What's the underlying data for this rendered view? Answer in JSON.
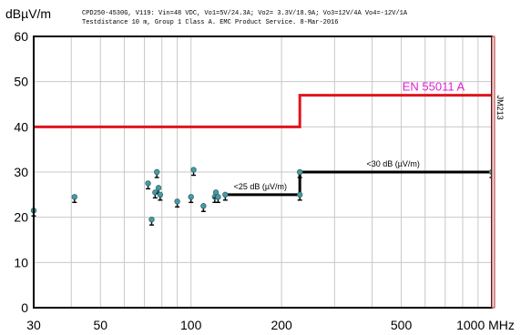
{
  "chart_data": {
    "type": "scatter",
    "ylabel": "dBµV/m",
    "header_line1": "CPD250-4530G, V119: Vin=48 VDC, Vo1=5V/24.3A; Vo2= 3.3V/18.9A; Vo3=12V/4A Vo4=-12V/1A",
    "header_line2": "Testdistance 10 m, Group 1 Class A. EMC Product Service. 8-Mar-2016",
    "x_scale": "log",
    "xlim": [
      30,
      1000
    ],
    "ylim": [
      0,
      60
    ],
    "x_ticks": [
      30,
      50,
      100,
      200,
      500,
      1000
    ],
    "x_tick_labels": [
      "30",
      "50",
      "100",
      "200",
      "500",
      "1000 MHz"
    ],
    "y_ticks": [
      0,
      10,
      20,
      30,
      40,
      50,
      60
    ],
    "y_tick_labels": [
      "0",
      "10",
      "20",
      "30",
      "40",
      "50",
      "60"
    ],
    "grid": true,
    "side_label": "JM213",
    "limit_line": {
      "label": "EN 55011 A",
      "color": "#e0141e",
      "label_color": "#e020d0",
      "points": [
        [
          30,
          40
        ],
        [
          230,
          40
        ],
        [
          230,
          47
        ],
        [
          1000,
          47
        ]
      ]
    },
    "margin_line": {
      "color": "#000000",
      "points": [
        [
          130,
          25
        ],
        [
          230,
          25
        ],
        [
          230,
          30
        ],
        [
          1000,
          30
        ]
      ],
      "labels": [
        {
          "text": "<25 dB (µV/m)",
          "x": 170,
          "y": 25
        },
        {
          "text": "<30 dB (µV/m)",
          "x": 470,
          "y": 30
        }
      ]
    },
    "measurements": [
      {
        "x": 30,
        "y": 21.5
      },
      {
        "x": 41,
        "y": 24.5
      },
      {
        "x": 72,
        "y": 27.5
      },
      {
        "x": 74,
        "y": 19.5
      },
      {
        "x": 76,
        "y": 25.5
      },
      {
        "x": 77,
        "y": 30
      },
      {
        "x": 78,
        "y": 26.5
      },
      {
        "x": 79,
        "y": 25
      },
      {
        "x": 90,
        "y": 23.5
      },
      {
        "x": 100,
        "y": 24.5
      },
      {
        "x": 102,
        "y": 30.5
      },
      {
        "x": 110,
        "y": 22.5
      },
      {
        "x": 120,
        "y": 24.5
      },
      {
        "x": 121,
        "y": 25.5
      },
      {
        "x": 123,
        "y": 24.5
      },
      {
        "x": 130,
        "y": 25
      },
      {
        "x": 230,
        "y": 30
      },
      {
        "x": 230,
        "y": 25
      },
      {
        "x": 1000,
        "y": 30
      }
    ],
    "marker_color": "#4a9aa0"
  }
}
